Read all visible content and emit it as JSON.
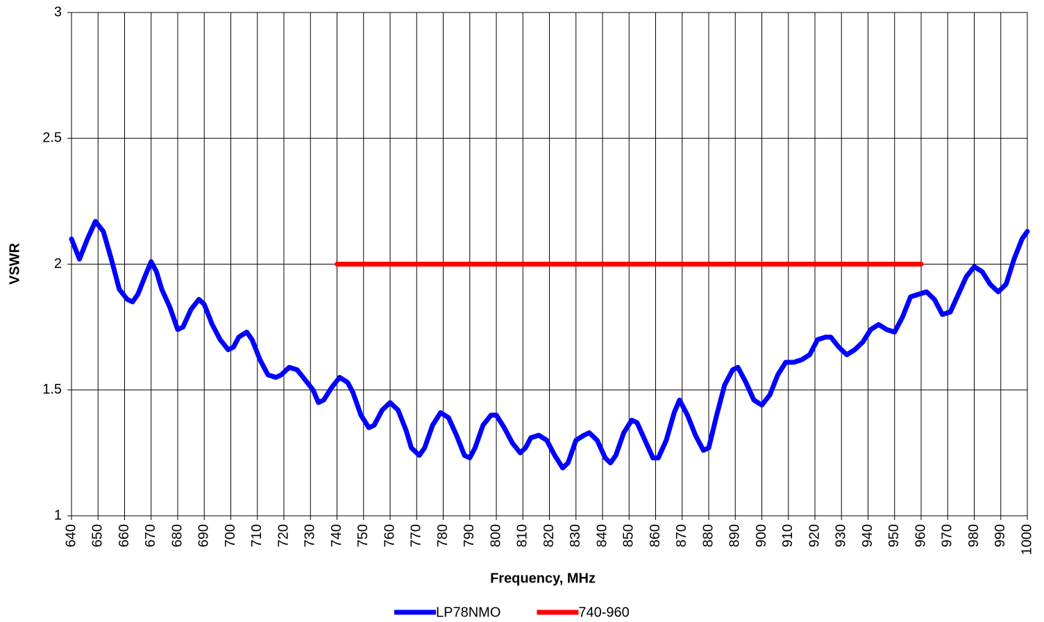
{
  "chart_data": {
    "type": "line",
    "xlabel": "Frequency, MHz",
    "ylabel": "VSWR",
    "xlim": [
      640,
      1000
    ],
    "xticks": [
      640,
      650,
      660,
      670,
      680,
      690,
      700,
      710,
      720,
      730,
      740,
      750,
      760,
      770,
      780,
      790,
      800,
      810,
      820,
      830,
      840,
      850,
      860,
      870,
      880,
      890,
      900,
      910,
      920,
      930,
      940,
      950,
      960,
      970,
      980,
      990,
      1000
    ],
    "ylim": [
      1,
      3
    ],
    "yticks": [
      1,
      1.5,
      2,
      2.5,
      3
    ],
    "grid": true,
    "legend": "bottom",
    "series": [
      {
        "name": "LP78NMO",
        "color": "#0000ff",
        "x": [
          640,
          643,
          646,
          649,
          652,
          655,
          658,
          661,
          663,
          665,
          668,
          670,
          672,
          674,
          677,
          680,
          682,
          685,
          688,
          690,
          693,
          696,
          699,
          701,
          703,
          706,
          708,
          711,
          714,
          717,
          719,
          722,
          725,
          728,
          731,
          733,
          735,
          738,
          741,
          744,
          746,
          749,
          752,
          754,
          757,
          760,
          763,
          766,
          768,
          771,
          773,
          776,
          779,
          782,
          785,
          788,
          790,
          792,
          795,
          798,
          800,
          803,
          806,
          809,
          811,
          813,
          816,
          819,
          822,
          825,
          827,
          830,
          833,
          835,
          838,
          841,
          843,
          845,
          848,
          851,
          853,
          856,
          859,
          861,
          864,
          867,
          869,
          872,
          875,
          878,
          880,
          883,
          886,
          889,
          891,
          894,
          897,
          900,
          903,
          906,
          909,
          912,
          915,
          918,
          921,
          924,
          926,
          929,
          932,
          935,
          938,
          941,
          944,
          947,
          950,
          953,
          956,
          959,
          962,
          965,
          968,
          971,
          974,
          977,
          980,
          983,
          986,
          989,
          992,
          995,
          998,
          1000
        ],
        "values": [
          2.1,
          2.02,
          2.1,
          2.17,
          2.13,
          2.02,
          1.9,
          1.86,
          1.85,
          1.88,
          1.96,
          2.01,
          1.97,
          1.9,
          1.83,
          1.74,
          1.75,
          1.82,
          1.86,
          1.84,
          1.76,
          1.7,
          1.66,
          1.67,
          1.71,
          1.73,
          1.7,
          1.62,
          1.56,
          1.55,
          1.56,
          1.59,
          1.58,
          1.54,
          1.5,
          1.45,
          1.46,
          1.51,
          1.55,
          1.53,
          1.49,
          1.4,
          1.35,
          1.36,
          1.42,
          1.45,
          1.42,
          1.34,
          1.27,
          1.24,
          1.27,
          1.36,
          1.41,
          1.39,
          1.32,
          1.24,
          1.23,
          1.27,
          1.36,
          1.4,
          1.4,
          1.35,
          1.29,
          1.25,
          1.27,
          1.31,
          1.32,
          1.3,
          1.24,
          1.19,
          1.21,
          1.3,
          1.32,
          1.33,
          1.3,
          1.23,
          1.21,
          1.24,
          1.33,
          1.38,
          1.37,
          1.3,
          1.23,
          1.23,
          1.3,
          1.41,
          1.46,
          1.4,
          1.32,
          1.26,
          1.27,
          1.4,
          1.52,
          1.58,
          1.59,
          1.53,
          1.46,
          1.44,
          1.48,
          1.56,
          1.61,
          1.61,
          1.62,
          1.64,
          1.7,
          1.71,
          1.71,
          1.67,
          1.64,
          1.66,
          1.69,
          1.74,
          1.76,
          1.74,
          1.73,
          1.79,
          1.87,
          1.88,
          1.89,
          1.86,
          1.8,
          1.81,
          1.88,
          1.95,
          1.99,
          1.97,
          1.92,
          1.89,
          1.92,
          2.02,
          2.1,
          2.13
        ]
      },
      {
        "name": "740-960",
        "color": "#ff0000",
        "x": [
          740,
          960
        ],
        "values": [
          2,
          2
        ]
      }
    ]
  }
}
